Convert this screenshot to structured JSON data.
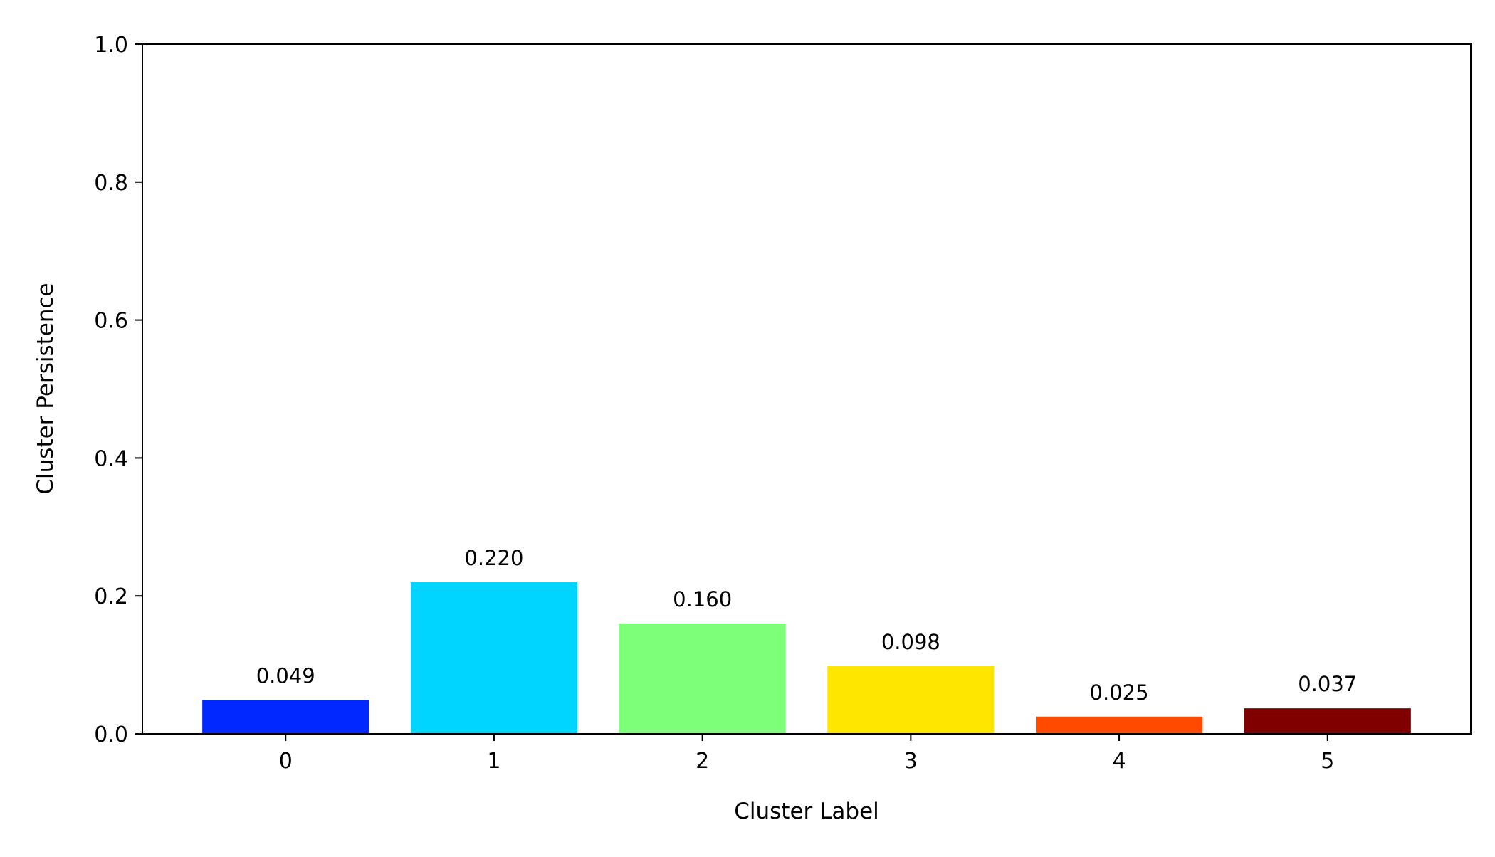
{
  "chart_data": {
    "type": "bar",
    "categories": [
      "0",
      "1",
      "2",
      "3",
      "4",
      "5"
    ],
    "values": [
      0.049,
      0.22,
      0.16,
      0.098,
      0.025,
      0.037
    ],
    "data_labels": [
      "0.049",
      "0.220",
      "0.160",
      "0.098",
      "0.025",
      "0.037"
    ],
    "colors": [
      "#0028ff",
      "#00d5ff",
      "#7dff7a",
      "#ffe600",
      "#ff4a00",
      "#800000"
    ],
    "xlabel": "Cluster Label",
    "ylabel": "Cluster Persistence",
    "ylim": [
      0,
      1.0
    ],
    "yticks": [
      0.0,
      0.2,
      0.4,
      0.6,
      0.8,
      1.0
    ],
    "ytick_labels": [
      "0.0",
      "0.2",
      "0.4",
      "0.6",
      "0.8",
      "1.0"
    ],
    "grid": false,
    "legend": "none"
  }
}
